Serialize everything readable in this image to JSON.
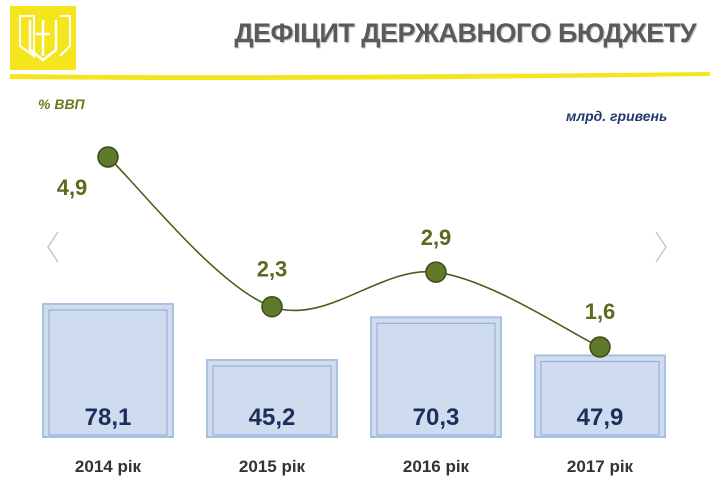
{
  "header": {
    "title": "ДЕФІЦИТ ДЕРЖАВНОГО БЮДЖЕТУ",
    "emblem_icon": "trident-coat-of-arms-icon"
  },
  "units": {
    "left": "% ВВП",
    "right": "млрд. гривень"
  },
  "colors": {
    "accent_yellow": "#f4e51d",
    "bar_fill": "#cfdcef",
    "bar_border": "#a9bfdf",
    "bar_label": "#1c2f5a",
    "line_color": "#4b5e1c",
    "marker": "#5e7a2a",
    "pct_label": "#5a6a1e",
    "title_gray": "#5a5a5a"
  },
  "nav": {
    "prev_icon": "chevron-left-icon",
    "next_icon": "chevron-right-icon"
  },
  "chart_data": {
    "type": "bar",
    "categories": [
      "2014 рік",
      "2015 рік",
      "2016 рік",
      "2017 рік"
    ],
    "series": [
      {
        "type": "bar",
        "values": [
          78.1,
          45.2,
          70.3,
          47.9
        ],
        "labels": [
          "78,1",
          "45,2",
          "70,3",
          "47,9"
        ]
      },
      {
        "type": "line",
        "values": [
          4.9,
          2.3,
          2.9,
          1.6
        ],
        "labels": [
          "4,9",
          "2,3",
          "2,9",
          "1,6"
        ]
      }
    ],
    "grid": false,
    "legend": "none"
  }
}
